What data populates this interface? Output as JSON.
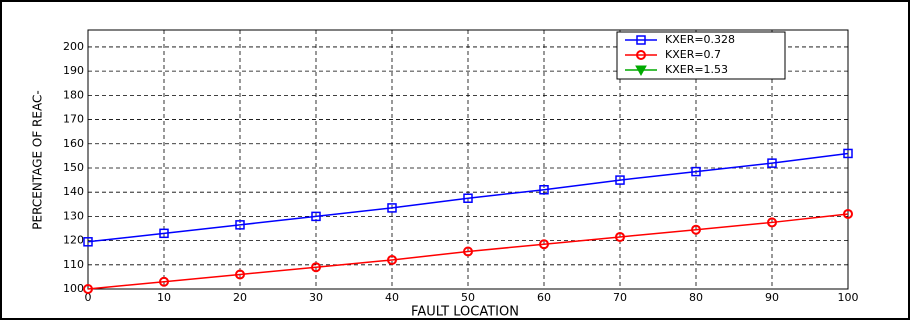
{
  "chart_data": {
    "type": "line",
    "x_label": "FAULT LOCATION",
    "y_label": "PERCENTAGE OF REAC-",
    "x": [
      0,
      10,
      20,
      30,
      40,
      50,
      60,
      70,
      80,
      90,
      100
    ],
    "series": [
      {
        "name": "KXER=0.328",
        "color": "#0000ff",
        "marker": "square",
        "values": [
          119.5,
          123,
          126.5,
          130,
          133.5,
          137.5,
          141,
          145,
          148.5,
          152,
          156
        ]
      },
      {
        "name": "KXER=0.7",
        "color": "#ff0000",
        "marker": "circle",
        "values": [
          100,
          103,
          106,
          109,
          112,
          115.5,
          118.5,
          121.5,
          124.5,
          127.5,
          131
        ]
      },
      {
        "name": "KXER=1.53",
        "color": "#00aa00",
        "marker": "triangle-down",
        "values": [
          null,
          null,
          null,
          null,
          null,
          null,
          null,
          null,
          null,
          null,
          null
        ]
      }
    ],
    "xlim": [
      0,
      100
    ],
    "xticks": [
      0,
      10,
      20,
      30,
      40,
      50,
      60,
      70,
      80,
      90,
      100
    ],
    "ylim": [
      100,
      207
    ],
    "yticks": [
      100,
      110,
      120,
      130,
      140,
      150,
      160,
      170,
      180,
      190,
      200
    ],
    "grid": true
  }
}
